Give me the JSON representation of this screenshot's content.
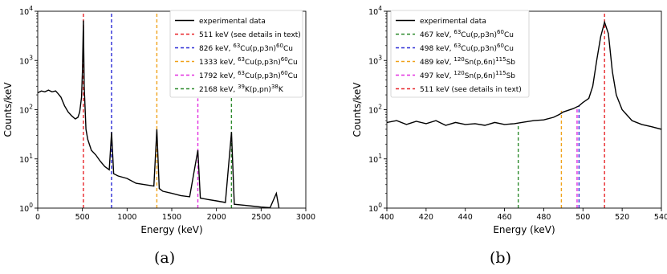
{
  "chart_data": [
    {
      "type": "line",
      "panel_label": "(a)",
      "xlabel": "Energy (keV)",
      "ylabel": "Counts/keV",
      "xlim": [
        0,
        3000
      ],
      "ylim": [
        1,
        10000
      ],
      "yscale": "log",
      "xticks": [
        0,
        500,
        1000,
        1500,
        2000,
        2500,
        3000
      ],
      "yticks": [
        1,
        10,
        100,
        1000,
        10000
      ],
      "ytick_labels": [
        "10^0",
        "10^1",
        "10^2",
        "10^3",
        "10^4"
      ],
      "grid": false,
      "legend_position": "upper-right",
      "series": [
        {
          "name": "experimental data",
          "style": "solid",
          "color": "#000000",
          "points": [
            [
              0,
              220
            ],
            [
              40,
              240
            ],
            [
              80,
              230
            ],
            [
              120,
              250
            ],
            [
              160,
              230
            ],
            [
              200,
              240
            ],
            [
              230,
              210
            ],
            [
              260,
              180
            ],
            [
              300,
              120
            ],
            [
              340,
              90
            ],
            [
              380,
              75
            ],
            [
              420,
              65
            ],
            [
              450,
              70
            ],
            [
              470,
              90
            ],
            [
              490,
              180
            ],
            [
              500,
              600
            ],
            [
              511,
              6500
            ],
            [
              520,
              300
            ],
            [
              540,
              40
            ],
            [
              560,
              25
            ],
            [
              600,
              15
            ],
            [
              650,
              12
            ],
            [
              700,
              9
            ],
            [
              750,
              7
            ],
            [
              800,
              6
            ],
            [
              826,
              35
            ],
            [
              850,
              5
            ],
            [
              900,
              4.5
            ],
            [
              1000,
              4
            ],
            [
              1100,
              3.2
            ],
            [
              1200,
              3
            ],
            [
              1300,
              2.8
            ],
            [
              1333,
              40
            ],
            [
              1360,
              2.5
            ],
            [
              1400,
              2.2
            ],
            [
              1500,
              2
            ],
            [
              1600,
              1.8
            ],
            [
              1700,
              1.7
            ],
            [
              1792,
              15
            ],
            [
              1820,
              1.6
            ],
            [
              1900,
              1.5
            ],
            [
              2000,
              1.4
            ],
            [
              2100,
              1.3
            ],
            [
              2168,
              35
            ],
            [
              2200,
              1.2
            ],
            [
              2300,
              1.15
            ],
            [
              2400,
              1.1
            ],
            [
              2500,
              1.05
            ],
            [
              2600,
              1.02
            ],
            [
              2670,
              2
            ],
            [
              2700,
              1
            ]
          ]
        }
      ],
      "reference_lines": [
        {
          "x": 511,
          "label": "511 keV (see details in text)",
          "color": "#e8262a",
          "ymax": 10000
        },
        {
          "x": 826,
          "label": "826 keV, 63Cu(p,p3n)60Cu",
          "color": "#2a2ad6",
          "ymax": 10000
        },
        {
          "x": 1333,
          "label": "1333 keV, 63Cu(p,p3n)60Cu",
          "color": "#f0a21a",
          "ymax": 10000
        },
        {
          "x": 1792,
          "label": "1792 keV, 63Cu(p,p3n)60Cu",
          "color": "#e22ee0",
          "ymax": 170
        },
        {
          "x": 2168,
          "label": "2168 keV, 39K(p,pn)38K",
          "color": "#2c8a2c",
          "ymax": 340
        }
      ]
    },
    {
      "type": "line",
      "panel_label": "(b)",
      "xlabel": "Energy (keV)",
      "ylabel": "Counts/keV",
      "xlim": [
        400,
        540
      ],
      "ylim": [
        1,
        10000
      ],
      "yscale": "log",
      "xticks": [
        400,
        420,
        440,
        460,
        480,
        500,
        520,
        540
      ],
      "yticks": [
        1,
        10,
        100,
        1000,
        10000
      ],
      "ytick_labels": [
        "10^0",
        "10^1",
        "10^2",
        "10^3",
        "10^4"
      ],
      "grid": false,
      "legend_position": "upper-left",
      "series": [
        {
          "name": "experimental data",
          "style": "solid",
          "color": "#000000",
          "points": [
            [
              400,
              55
            ],
            [
              405,
              60
            ],
            [
              410,
              50
            ],
            [
              415,
              58
            ],
            [
              420,
              52
            ],
            [
              425,
              60
            ],
            [
              430,
              48
            ],
            [
              435,
              55
            ],
            [
              440,
              50
            ],
            [
              445,
              52
            ],
            [
              450,
              48
            ],
            [
              455,
              55
            ],
            [
              460,
              50
            ],
            [
              465,
              52
            ],
            [
              470,
              56
            ],
            [
              475,
              60
            ],
            [
              480,
              62
            ],
            [
              485,
              70
            ],
            [
              488,
              80
            ],
            [
              490,
              90
            ],
            [
              495,
              105
            ],
            [
              498,
              120
            ],
            [
              500,
              140
            ],
            [
              503,
              170
            ],
            [
              505,
              300
            ],
            [
              507,
              1000
            ],
            [
              509,
              3000
            ],
            [
              511,
              6000
            ],
            [
              513,
              3500
            ],
            [
              515,
              600
            ],
            [
              517,
              200
            ],
            [
              520,
              100
            ],
            [
              525,
              60
            ],
            [
              530,
              50
            ],
            [
              535,
              45
            ],
            [
              540,
              40
            ]
          ]
        }
      ],
      "reference_lines": [
        {
          "x": 467,
          "label": "467 keV, 63Cu(p,p3n)60Cu",
          "color": "#2c8a2c",
          "ymax": 50
        },
        {
          "x": 498,
          "label": "498 keV, 63Cu(p,p3n)60Cu",
          "color": "#2a2ad6",
          "ymax": 120
        },
        {
          "x": 489,
          "label": "489 keV, 120Sn(p,6n)115Sb",
          "color": "#f0a21a",
          "ymax": 95
        },
        {
          "x": 497,
          "label": "497 keV, 120Sn(p,6n)115Sb",
          "color": "#e22ee0",
          "ymax": 115
        },
        {
          "x": 511,
          "label": "511 keV (see details in text)",
          "color": "#e8262a",
          "ymax": 10000
        }
      ]
    }
  ]
}
